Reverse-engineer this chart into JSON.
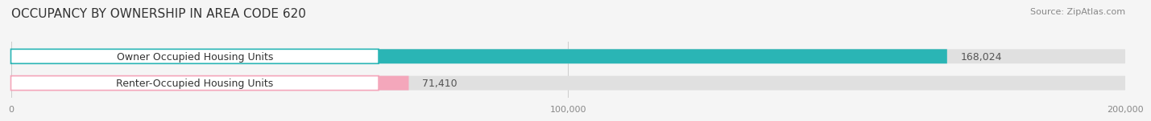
{
  "title": "OCCUPANCY BY OWNERSHIP IN AREA CODE 620",
  "source": "Source: ZipAtlas.com",
  "categories": [
    "Owner Occupied Housing Units",
    "Renter-Occupied Housing Units"
  ],
  "values": [
    168024,
    71410
  ],
  "bar_colors": [
    "#2ab5b5",
    "#f4a7bb"
  ],
  "value_labels": [
    "168,024",
    "71,410"
  ],
  "xlim": [
    0,
    200000
  ],
  "xtick_labels": [
    "0",
    "100,000",
    "200,000"
  ],
  "xtick_values": [
    0,
    100000,
    200000
  ],
  "bar_height": 0.52,
  "background_color": "#f5f5f5",
  "bar_background_color": "#e0e0e0",
  "title_fontsize": 11,
  "label_fontsize": 9,
  "value_fontsize": 9,
  "source_fontsize": 8
}
